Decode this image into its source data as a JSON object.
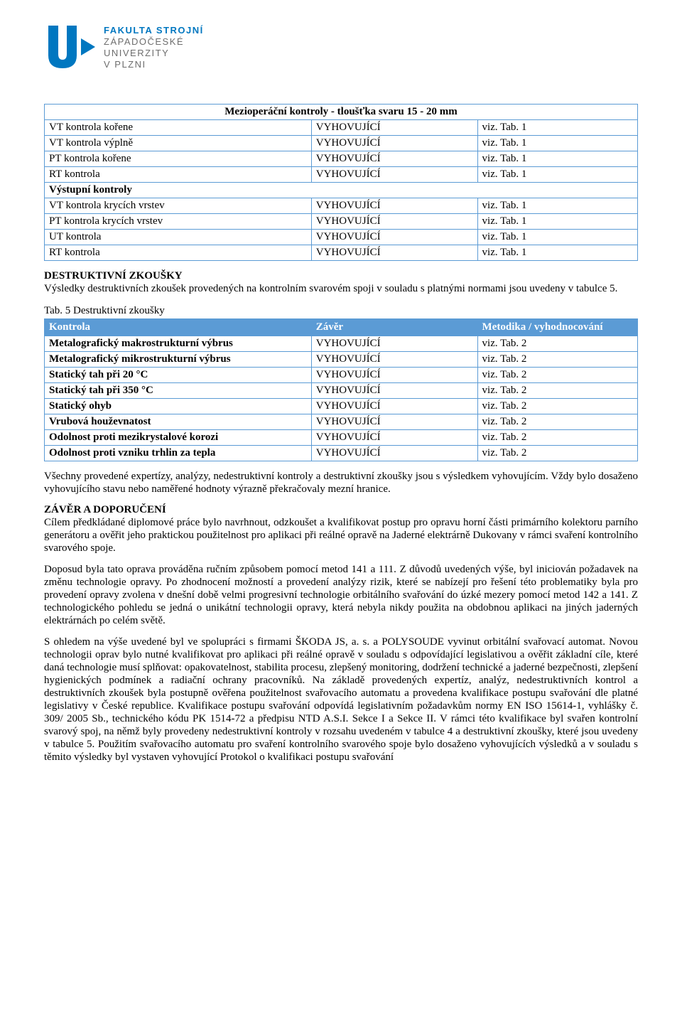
{
  "logo": {
    "line1": "FAKULTA STROJNÍ",
    "line2": "ZÁPADOČESKÉ",
    "line3": "UNIVERZITY",
    "line4": "V PLZNI",
    "primary_color": "#0077c0",
    "grey": "#6d6d6d"
  },
  "table1": {
    "title": "Mezioperáční kontroly - tloušťka svaru 15 - 20 mm",
    "border_color": "#5b9bd5",
    "rows_a": [
      {
        "c1": "VT kontrola kořene",
        "c2": "VYHOVUJÍCÍ",
        "c3": "viz. Tab. 1"
      },
      {
        "c1": "VT kontrola výplně",
        "c2": "VYHOVUJÍCÍ",
        "c3": "viz. Tab. 1"
      },
      {
        "c1": "PT kontrola kořene",
        "c2": "VYHOVUJÍCÍ",
        "c3": "viz. Tab. 1"
      },
      {
        "c1": "RT kontrola",
        "c2": "VYHOVUJÍCÍ",
        "c3": "viz. Tab. 1"
      }
    ],
    "section_b": "Výstupní kontroly",
    "rows_b": [
      {
        "c1": "VT kontrola krycích vrstev",
        "c2": "VYHOVUJÍCÍ",
        "c3": "viz. Tab. 1"
      },
      {
        "c1": "PT kontrola krycích vrstev",
        "c2": "VYHOVUJÍCÍ",
        "c3": "viz. Tab. 1"
      },
      {
        "c1": "UT kontrola",
        "c2": "VYHOVUJÍCÍ",
        "c3": "viz. Tab. 1"
      },
      {
        "c1": "RT kontrola",
        "c2": "VYHOVUJÍCÍ",
        "c3": "viz. Tab. 1"
      }
    ]
  },
  "section_destr": {
    "heading": "DESTRUKTIVNÍ ZKOUŠKY",
    "text": "Výsledky destruktivních zkoušek provedených na kontrolním svarovém spoji v souladu s platnými normami jsou uvedeny v tabulce 5."
  },
  "table2": {
    "caption": "Tab. 5 Destruktivní zkoušky",
    "header_bg": "#5b9bd5",
    "header_fg": "#ffffff",
    "columns": [
      "Kontrola",
      "Závěr",
      "Metodika / vyhodnocování"
    ],
    "rows": [
      {
        "c1": "Metalografický makrostrukturní výbrus",
        "c2": "VYHOVUJÍCÍ",
        "c3": "viz. Tab. 2",
        "bold": true
      },
      {
        "c1": "Metalografický mikrostrukturní výbrus",
        "c2": "VYHOVUJÍCÍ",
        "c3": "viz. Tab. 2",
        "bold": true
      },
      {
        "c1": "Statický tah při 20 °C",
        "c2": "VYHOVUJÍCÍ",
        "c3": "viz. Tab. 2",
        "bold": true
      },
      {
        "c1": "Statický tah při 350 °C",
        "c2": "VYHOVUJÍCÍ",
        "c3": "viz. Tab. 2",
        "bold": true
      },
      {
        "c1": "Statický ohyb",
        "c2": "VYHOVUJÍCÍ",
        "c3": "viz. Tab. 2",
        "bold": true
      },
      {
        "c1": "Vrubová houževnatost",
        "c2": "VYHOVUJÍCÍ",
        "c3": "viz. Tab. 2",
        "bold": true
      },
      {
        "c1": "Odolnost proti mezikrystalové korozi",
        "c2": "VYHOVUJÍCÍ",
        "c3": "viz. Tab. 2",
        "bold": true
      },
      {
        "c1": "Odolnost proti vzniku trhlin za tepla",
        "c2": "VYHOVUJÍCÍ",
        "c3": "viz. Tab. 2",
        "bold": true
      }
    ]
  },
  "para1": "Všechny provedené expertízy, analýzy, nedestruktivní kontroly a destruktivní zkoušky jsou s výsledkem vyhovujícím. Vždy bylo dosaženo vyhovujícího stavu nebo naměřené hodnoty výrazně překračovaly mezní hranice.",
  "section_zaver": {
    "heading": "ZÁVĚR A DOPORUČENÍ",
    "p1": "Cílem předkládané diplomové práce bylo navrhnout, odzkoušet a kvalifikovat postup pro opravu horní části primárního kolektoru parního generátoru a ověřit jeho praktickou použitelnost pro aplikaci při reálné opravě na Jaderné elektrárně Dukovany v rámci svaření kontrolního svarového spoje.",
    "p2": "Doposud byla tato oprava prováděna ručním způsobem pomocí metod 141 a 111. Z důvodů uvedených výše, byl iniciován požadavek na změnu technologie opravy. Po zhodnocení možností a provedení analýzy rizik, které se nabízejí pro řešení této problematiky byla pro provedení opravy zvolena v dnešní době velmi progresivní technologie orbitálního svařování do úzké mezery pomocí metod 142 a 141. Z technologického pohledu se jedná o unikátní technologii opravy, která nebyla nikdy použita na obdobnou aplikaci na jiných jaderných elektrárnách po celém světě.",
    "p3": "S ohledem na výše uvedené byl ve spolupráci s firmami ŠKODA JS, a. s. a POLYSOUDE vyvinut orbitální svařovací automat. Novou technologii oprav bylo nutné kvalifikovat pro aplikaci při reálné opravě v souladu s odpovídající legislativou a ověřit základní cíle, které daná technologie musí splňovat: opakovatelnost, stabilita procesu, zlepšený monitoring, dodržení technické a jaderné bezpečnosti, zlepšení hygienických podmínek a radiační ochrany pracovníků. Na základě provedených expertíz, analýz, nedestruktivních kontrol a destruktivních zkoušek byla postupně ověřena použitelnost svařovacího automatu a provedena kvalifikace postupu svařování dle platné legislativy v České republice. Kvalifikace postupu svařování odpovídá legislativním požadavkům normy EN ISO 15614-1, vyhlášky č. 309/ 2005 Sb., technického kódu PK 1514-72 a předpisu NTD A.S.I. Sekce I a Sekce II. V rámci této kvalifikace byl svařen kontrolní svarový spoj, na němž byly provedeny nedestruktivní kontroly v rozsahu uvedeném v tabulce 4 a destruktivní zkoušky, které jsou uvedeny v tabulce 5. Použitím svařovacího automatu pro svaření kontrolního svarového spoje bylo dosaženo vyhovujících výsledků a v souladu s těmito výsledky byl vystaven vyhovující Protokol o kvalifikaci postupu svařování"
  }
}
